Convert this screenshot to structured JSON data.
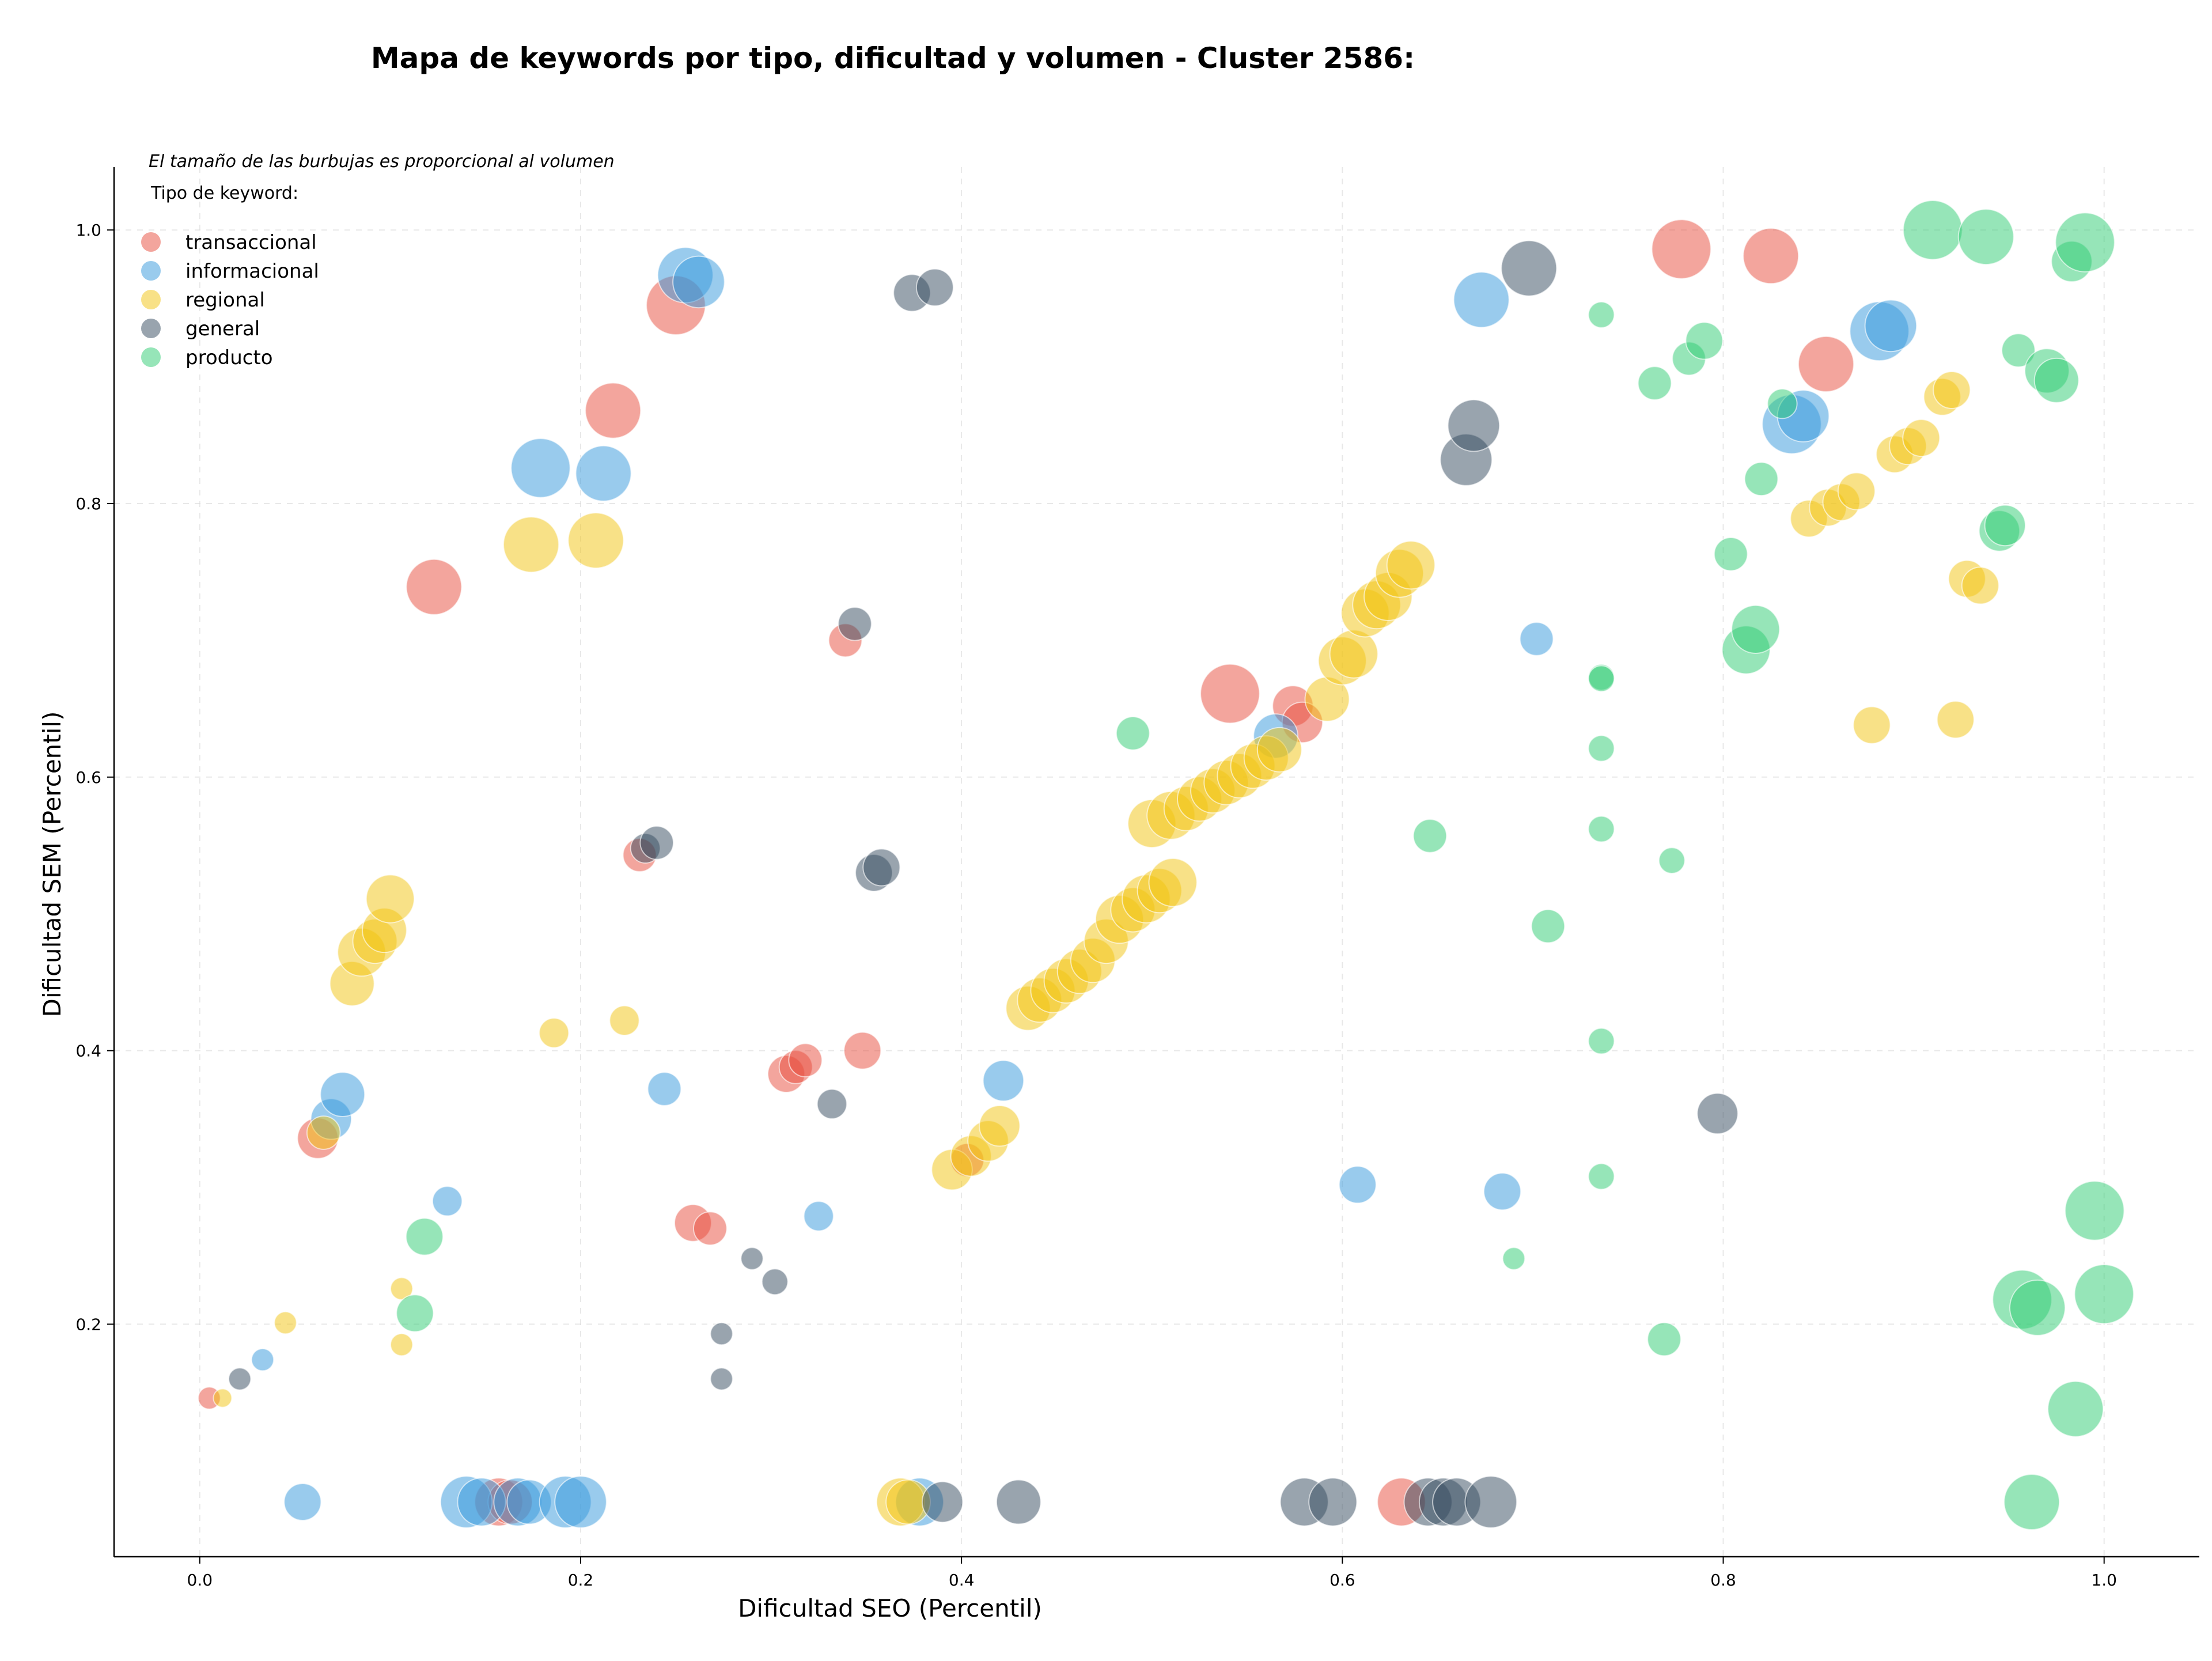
{
  "chart_data": {
    "type": "scatter",
    "title": "Mapa de keywords por tipo, dificultad y volumen - Cluster 2586:",
    "xlabel": "Dificultad SEO (Percentil)",
    "ylabel": "Dificultad SEM (Percentil)",
    "xlim": [
      -0.045,
      1.05
    ],
    "ylim": [
      0.03,
      1.046
    ],
    "xticks": [
      "0.0",
      "0.2",
      "0.4",
      "0.6",
      "0.8",
      "1.0"
    ],
    "yticks": [
      "0.2",
      "0.4",
      "0.6",
      "0.8",
      "1.0"
    ],
    "grid": true,
    "note": "El tamaño de las burbujas es proporcional al volumen",
    "legend_title": "Tipo de keyword:",
    "legend_position": "top-left",
    "series": [
      {
        "name": "transaccional",
        "color": "#e74c3c",
        "points": [
          [
            0.005,
            0.146,
            6
          ],
          [
            0.062,
            0.336,
            11
          ],
          [
            0.123,
            0.739,
            15
          ],
          [
            0.217,
            0.868,
            15
          ],
          [
            0.25,
            0.945,
            16
          ],
          [
            0.231,
            0.543,
            9
          ],
          [
            0.259,
            0.274,
            10
          ],
          [
            0.268,
            0.27,
            9
          ],
          [
            0.308,
            0.383,
            10
          ],
          [
            0.313,
            0.388,
            9
          ],
          [
            0.318,
            0.393,
            9
          ],
          [
            0.339,
            0.7,
            9
          ],
          [
            0.348,
            0.4,
            10
          ],
          [
            0.403,
            0.32,
            9
          ],
          [
            0.541,
            0.661,
            16
          ],
          [
            0.574,
            0.652,
            11
          ],
          [
            0.579,
            0.64,
            11
          ],
          [
            0.778,
            0.986,
            16
          ],
          [
            0.825,
            0.981,
            15
          ],
          [
            0.854,
            0.902,
            15
          ],
          [
            0.157,
            0.07,
            13
          ],
          [
            0.163,
            0.07,
            12
          ],
          [
            0.631,
            0.07,
            13
          ]
        ]
      },
      {
        "name": "informacional",
        "color": "#3498db",
        "points": [
          [
            0.033,
            0.174,
            6
          ],
          [
            0.054,
            0.07,
            10
          ],
          [
            0.069,
            0.35,
            11
          ],
          [
            0.075,
            0.368,
            12
          ],
          [
            0.13,
            0.29,
            8
          ],
          [
            0.179,
            0.826,
            16
          ],
          [
            0.212,
            0.822,
            15
          ],
          [
            0.255,
            0.967,
            15
          ],
          [
            0.262,
            0.962,
            14
          ],
          [
            0.244,
            0.372,
            9
          ],
          [
            0.325,
            0.279,
            8
          ],
          [
            0.14,
            0.07,
            14
          ],
          [
            0.148,
            0.07,
            13
          ],
          [
            0.167,
            0.07,
            13
          ],
          [
            0.173,
            0.07,
            12
          ],
          [
            0.192,
            0.07,
            14
          ],
          [
            0.2,
            0.07,
            14
          ],
          [
            0.378,
            0.07,
            13
          ],
          [
            0.422,
            0.378,
            11
          ],
          [
            0.565,
            0.63,
            12
          ],
          [
            0.608,
            0.302,
            10
          ],
          [
            0.673,
            0.949,
            15
          ],
          [
            0.684,
            0.297,
            10
          ],
          [
            0.702,
            0.701,
            9
          ],
          [
            0.836,
            0.858,
            16
          ],
          [
            0.842,
            0.864,
            14
          ],
          [
            0.882,
            0.926,
            16
          ],
          [
            0.888,
            0.93,
            14
          ]
        ]
      },
      {
        "name": "regional",
        "color": "#f1c40f",
        "points": [
          [
            0.012,
            0.146,
            5
          ],
          [
            0.045,
            0.201,
            6
          ],
          [
            0.065,
            0.34,
            9
          ],
          [
            0.08,
            0.449,
            12
          ],
          [
            0.085,
            0.472,
            13
          ],
          [
            0.092,
            0.48,
            12
          ],
          [
            0.097,
            0.488,
            12
          ],
          [
            0.1,
            0.511,
            13
          ],
          [
            0.106,
            0.226,
            6
          ],
          [
            0.106,
            0.185,
            6
          ],
          [
            0.174,
            0.77,
            15
          ],
          [
            0.208,
            0.773,
            15
          ],
          [
            0.186,
            0.413,
            8
          ],
          [
            0.223,
            0.422,
            8
          ],
          [
            0.368,
            0.07,
            13
          ],
          [
            0.372,
            0.07,
            12
          ],
          [
            0.395,
            0.313,
            11
          ],
          [
            0.405,
            0.323,
            11
          ],
          [
            0.414,
            0.334,
            11
          ],
          [
            0.42,
            0.345,
            11
          ],
          [
            0.435,
            0.431,
            12
          ],
          [
            0.441,
            0.437,
            12
          ],
          [
            0.448,
            0.444,
            12
          ],
          [
            0.455,
            0.451,
            12
          ],
          [
            0.462,
            0.458,
            12
          ],
          [
            0.469,
            0.466,
            12
          ],
          [
            0.476,
            0.48,
            12
          ],
          [
            0.483,
            0.496,
            13
          ],
          [
            0.49,
            0.503,
            12
          ],
          [
            0.497,
            0.511,
            13
          ],
          [
            0.504,
            0.517,
            12
          ],
          [
            0.511,
            0.523,
            13
          ],
          [
            0.5,
            0.566,
            13
          ],
          [
            0.51,
            0.572,
            13
          ],
          [
            0.518,
            0.577,
            12
          ],
          [
            0.525,
            0.584,
            12
          ],
          [
            0.532,
            0.59,
            12
          ],
          [
            0.539,
            0.596,
            12
          ],
          [
            0.546,
            0.601,
            12
          ],
          [
            0.553,
            0.608,
            12
          ],
          [
            0.56,
            0.614,
            12
          ],
          [
            0.567,
            0.62,
            12
          ],
          [
            0.592,
            0.657,
            12
          ],
          [
            0.6,
            0.685,
            13
          ],
          [
            0.606,
            0.69,
            13
          ],
          [
            0.612,
            0.72,
            13
          ],
          [
            0.618,
            0.726,
            13
          ],
          [
            0.624,
            0.732,
            13
          ],
          [
            0.63,
            0.749,
            13
          ],
          [
            0.636,
            0.755,
            13
          ],
          [
            0.845,
            0.789,
            10
          ],
          [
            0.855,
            0.797,
            10
          ],
          [
            0.862,
            0.801,
            10
          ],
          [
            0.87,
            0.809,
            10
          ],
          [
            0.878,
            0.638,
            10
          ],
          [
            0.89,
            0.836,
            10
          ],
          [
            0.897,
            0.842,
            10
          ],
          [
            0.904,
            0.848,
            10
          ],
          [
            0.915,
            0.878,
            10
          ],
          [
            0.92,
            0.883,
            10
          ],
          [
            0.922,
            0.642,
            10
          ],
          [
            0.928,
            0.745,
            10
          ],
          [
            0.935,
            0.74,
            10
          ]
        ]
      },
      {
        "name": "general",
        "color": "#34495e",
        "points": [
          [
            0.021,
            0.16,
            6
          ],
          [
            0.234,
            0.548,
            8
          ],
          [
            0.24,
            0.552,
            9
          ],
          [
            0.274,
            0.193,
            6
          ],
          [
            0.274,
            0.16,
            6
          ],
          [
            0.29,
            0.248,
            6
          ],
          [
            0.302,
            0.231,
            7
          ],
          [
            0.332,
            0.361,
            8
          ],
          [
            0.344,
            0.712,
            9
          ],
          [
            0.354,
            0.53,
            10
          ],
          [
            0.358,
            0.534,
            10
          ],
          [
            0.374,
            0.954,
            10
          ],
          [
            0.386,
            0.958,
            10
          ],
          [
            0.39,
            0.07,
            11
          ],
          [
            0.43,
            0.07,
            12
          ],
          [
            0.58,
            0.07,
            13
          ],
          [
            0.595,
            0.07,
            13
          ],
          [
            0.645,
            0.07,
            13
          ],
          [
            0.653,
            0.07,
            13
          ],
          [
            0.66,
            0.07,
            13
          ],
          [
            0.678,
            0.07,
            14
          ],
          [
            0.665,
            0.832,
            14
          ],
          [
            0.669,
            0.857,
            14
          ],
          [
            0.698,
            0.972,
            15
          ],
          [
            0.797,
            0.354,
            11
          ]
        ]
      },
      {
        "name": "producto",
        "color": "#2ecc71",
        "points": [
          [
            0.118,
            0.264,
            10
          ],
          [
            0.113,
            0.208,
            10
          ],
          [
            0.49,
            0.632,
            9
          ],
          [
            0.646,
            0.557,
            9
          ],
          [
            0.69,
            0.248,
            6
          ],
          [
            0.708,
            0.491,
            9
          ],
          [
            0.736,
            0.938,
            7
          ],
          [
            0.736,
            0.673,
            7
          ],
          [
            0.736,
            0.672,
            7
          ],
          [
            0.736,
            0.621,
            7
          ],
          [
            0.736,
            0.562,
            7
          ],
          [
            0.736,
            0.407,
            7
          ],
          [
            0.736,
            0.308,
            7
          ],
          [
            0.764,
            0.888,
            9
          ],
          [
            0.769,
            0.189,
            9
          ],
          [
            0.773,
            0.539,
            7
          ],
          [
            0.782,
            0.906,
            9
          ],
          [
            0.79,
            0.919,
            10
          ],
          [
            0.804,
            0.763,
            9
          ],
          [
            0.812,
            0.693,
            13
          ],
          [
            0.817,
            0.708,
            13
          ],
          [
            0.82,
            0.818,
            9
          ],
          [
            0.831,
            0.873,
            8
          ],
          [
            0.91,
            1.0,
            16
          ],
          [
            0.938,
            0.995,
            15
          ],
          [
            0.945,
            0.78,
            11
          ],
          [
            0.948,
            0.784,
            11
          ],
          [
            0.955,
            0.912,
            9
          ],
          [
            0.97,
            0.897,
            12
          ],
          [
            0.975,
            0.89,
            12
          ],
          [
            0.983,
            0.977,
            11
          ],
          [
            0.99,
            0.991,
            16
          ],
          [
            0.995,
            0.283,
            16
          ],
          [
            1.0,
            0.222,
            16
          ],
          [
            0.957,
            0.218,
            16
          ],
          [
            0.965,
            0.212,
            15
          ],
          [
            0.985,
            0.138,
            15
          ],
          [
            0.962,
            0.07,
            15
          ]
        ]
      }
    ]
  }
}
